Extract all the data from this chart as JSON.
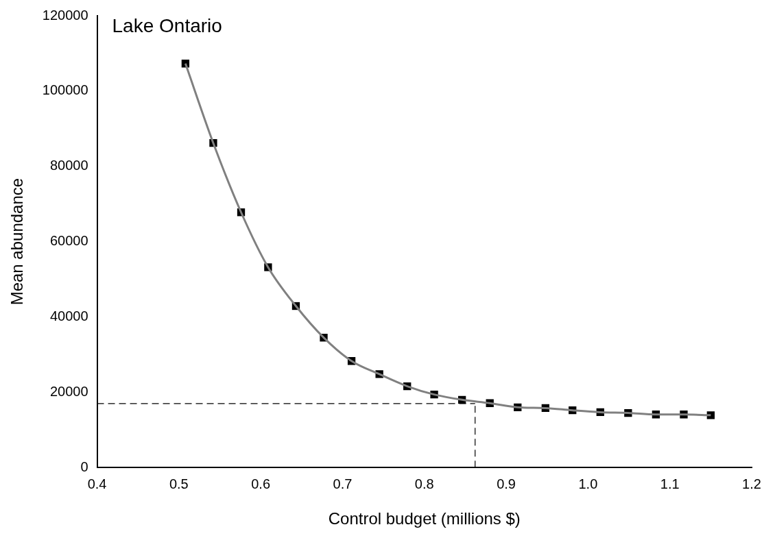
{
  "chart_data": {
    "type": "line",
    "title": "Lake Ontario",
    "xlabel": "Control budget (millions $)",
    "ylabel": "Mean abundance",
    "x": [
      0.508,
      0.542,
      0.576,
      0.609,
      0.643,
      0.677,
      0.711,
      0.745,
      0.779,
      0.812,
      0.846,
      0.88,
      0.914,
      0.948,
      0.981,
      1.015,
      1.049,
      1.083,
      1.117,
      1.15
    ],
    "series": [
      {
        "color": "#808080",
        "marker": "none",
        "values": [
          107300,
          86200,
          67800,
          53200,
          42900,
          34500,
          28300,
          24800,
          21600,
          19400,
          18000,
          17100,
          16000,
          15800,
          15200,
          14700,
          14500,
          14100,
          14100,
          13900
        ]
      },
      {
        "type": "scatter",
        "color": "#000000",
        "marker": "square",
        "values": [
          107300,
          86200,
          67800,
          53200,
          42900,
          34500,
          28300,
          24800,
          21600,
          19400,
          18000,
          17100,
          16000,
          15800,
          15200,
          14700,
          14500,
          14100,
          14100,
          13900
        ]
      }
    ],
    "xlim": [
      0.4,
      1.2
    ],
    "xticks": [
      {
        "value": 0.4,
        "label": "0.4"
      },
      {
        "value": 0.5,
        "label": "0.5"
      },
      {
        "value": 0.6,
        "label": "0.6"
      },
      {
        "value": 0.7,
        "label": "0.7"
      },
      {
        "value": 0.8,
        "label": "0.8"
      },
      {
        "value": 0.9,
        "label": "0.9"
      },
      {
        "value": 1.0,
        "label": "1.0"
      },
      {
        "value": 1.1,
        "label": "1.1"
      },
      {
        "value": 1.2,
        "label": "1.2"
      }
    ],
    "ylim": [
      0,
      120000
    ],
    "yticks": [
      0,
      20000,
      40000,
      60000,
      80000,
      100000,
      120000
    ],
    "ref_lines": [
      {
        "axis": "y",
        "value": 17000,
        "color": "#000000",
        "line_style": "dashed"
      },
      {
        "axis": "x",
        "value": 0.862,
        "color": "#000000",
        "line_style": "dashed"
      }
    ],
    "grid": false,
    "legend": false
  }
}
